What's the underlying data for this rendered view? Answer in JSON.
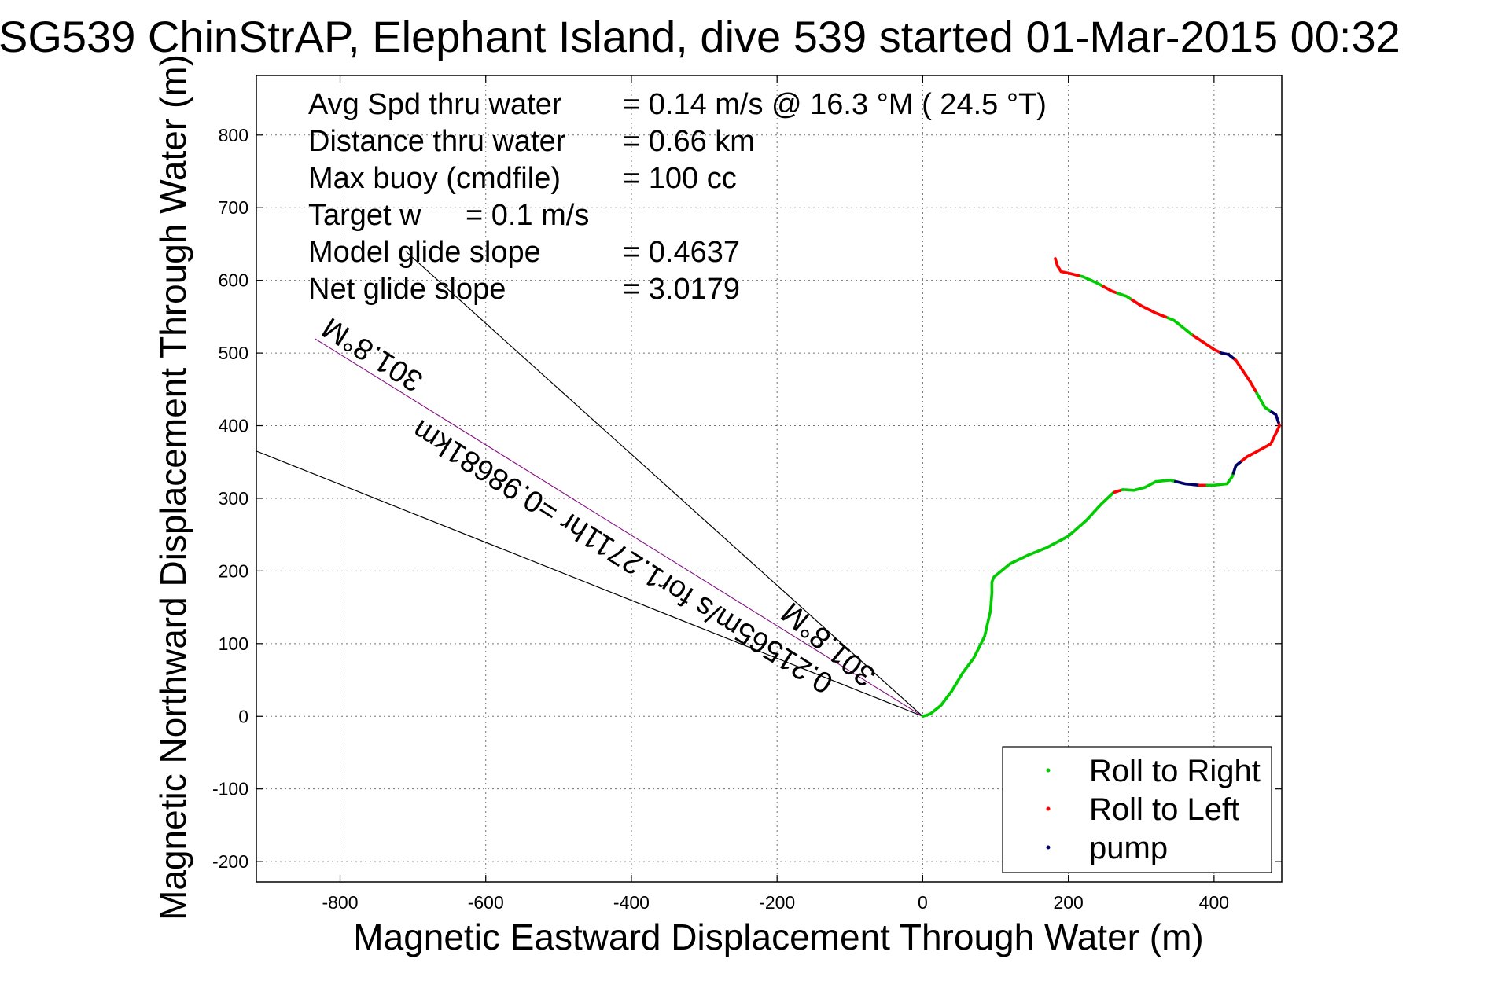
{
  "chart_data": {
    "type": "line",
    "title": "SG539 ChinStrAP, Elephant Island, dive 539 started 01-Mar-2015 00:32",
    "xlabel": "Magnetic Eastward Displacement Through Water (m)",
    "ylabel": "Magnetic Northward Displacement Through Water (m)",
    "xlim": [
      -915,
      493
    ],
    "ylim": [
      -228,
      882
    ],
    "xticks": [
      -800,
      -600,
      -400,
      -200,
      0,
      200,
      400
    ],
    "yticks": [
      -200,
      -100,
      0,
      100,
      200,
      300,
      400,
      500,
      600,
      700,
      800
    ],
    "grid": true,
    "legend_position": "bottom-right",
    "annotations": [
      {
        "label": "Avg Spd thru water",
        "value": "=  0.14 m/s @  16.3 °M ( 24.5 °T)"
      },
      {
        "label": "Distance thru water",
        "value": "=  0.66 km"
      },
      {
        "label": "Max buoy (cmdfile)",
        "value": "= 100 cc"
      },
      {
        "label": "Target w",
        "value": "= 0.1 m/s"
      },
      {
        "label": "Model glide slope",
        "value": "= 0.4637"
      },
      {
        "label": "Net glide slope",
        "value": "= 3.0179"
      }
    ],
    "rotated_labels": {
      "heading_far": "301.8°M",
      "speed_summary": "0.21565m/s for1.2711hr =0.98681km",
      "heading_near": "301.8°M"
    },
    "reference_lines": [
      {
        "name": "upper-bound",
        "from": [
          0,
          0
        ],
        "to": [
          -710,
          640
        ]
      },
      {
        "name": "lower-bound",
        "from": [
          0,
          0
        ],
        "to": [
          -915,
          365
        ]
      },
      {
        "name": "heading-line",
        "from": [
          0,
          0
        ],
        "to": [
          -835,
          520
        ]
      }
    ],
    "track": {
      "x": [
        0,
        10,
        25,
        40,
        55,
        70,
        85,
        93,
        95,
        95,
        98,
        103,
        120,
        145,
        170,
        200,
        225,
        245,
        262,
        275,
        290,
        305,
        320,
        340,
        360,
        380,
        400,
        418,
        425,
        430,
        445,
        460,
        478,
        490,
        485,
        470,
        450,
        430,
        420,
        410,
        400,
        385,
        370,
        345,
        320,
        300,
        280,
        260,
        240,
        220,
        200,
        190,
        185,
        182
      ],
      "y": [
        0,
        3,
        15,
        35,
        60,
        80,
        110,
        145,
        170,
        185,
        192,
        196,
        210,
        222,
        232,
        248,
        270,
        292,
        308,
        312,
        311,
        315,
        323,
        325,
        320,
        318,
        318,
        320,
        330,
        345,
        357,
        365,
        375,
        400,
        415,
        425,
        460,
        490,
        498,
        500,
        505,
        515,
        525,
        545,
        555,
        565,
        578,
        585,
        596,
        605,
        610,
        612,
        620,
        630
      ]
    },
    "series": [
      {
        "name": "Roll to Right",
        "color": "#00cc00"
      },
      {
        "name": "Roll to Left",
        "color": "#ff0000"
      },
      {
        "name": "pump",
        "color": "#000066"
      }
    ],
    "track_line_color": "#0000ff",
    "heading_line_color": "#cc33cc"
  }
}
